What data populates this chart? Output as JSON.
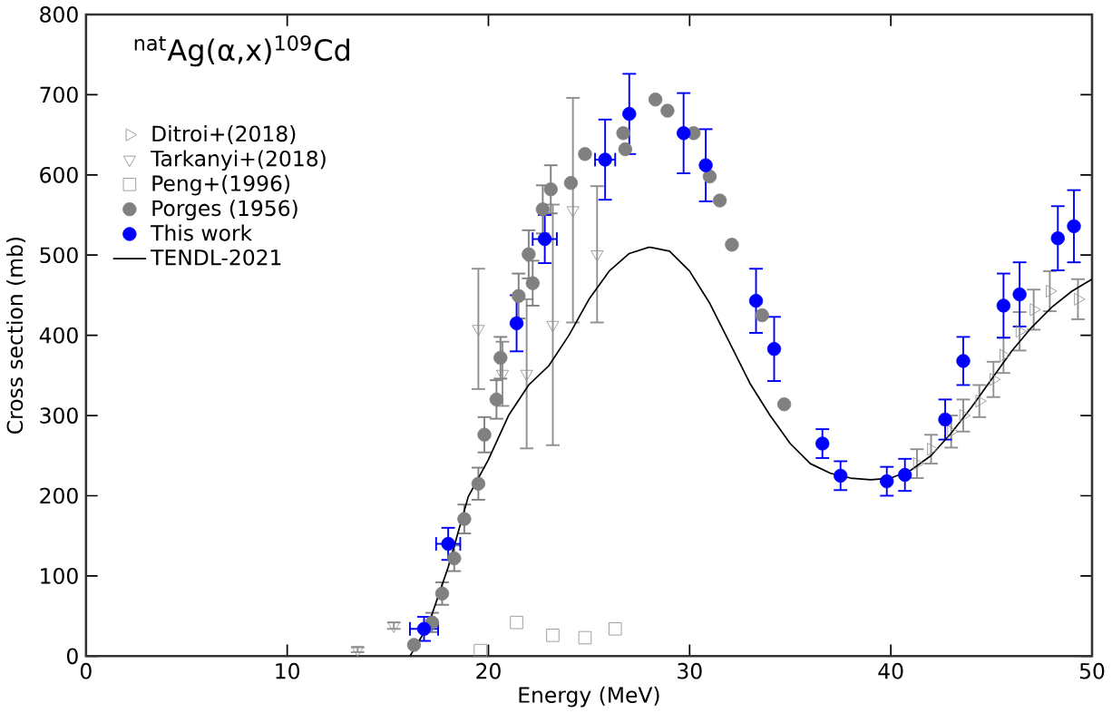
{
  "chart_data": {
    "type": "scatter",
    "title": "$^{nat}$Ag(α,x)$^{109}$Cd",
    "xlabel": "Energy (MeV)",
    "ylabel": "Cross section (mb)",
    "xlim": [
      0,
      50
    ],
    "ylim": [
      0,
      800
    ],
    "xticks": [
      0,
      10,
      20,
      30,
      40,
      50
    ],
    "yticks": [
      0,
      100,
      200,
      300,
      400,
      500,
      600,
      700,
      800
    ],
    "grid": false,
    "legend": "top left",
    "series": [
      {
        "name": "Ditroi+(2018)",
        "marker": "triangle-right",
        "color": "#909090",
        "x": [
          41.3,
          42.0,
          43.0,
          43.6,
          44.4,
          45.1,
          45.6,
          46.4,
          47.1,
          47.9,
          49.3
        ],
        "values": [
          240,
          258,
          280,
          300,
          318,
          345,
          375,
          405,
          432,
          455,
          445
        ],
        "errors": [
          18,
          18,
          20,
          20,
          20,
          22,
          22,
          24,
          25,
          25,
          25
        ]
      },
      {
        "name": "Tarkanyi+(2018)",
        "marker": "triangle-down",
        "color": "#909090",
        "x": [
          13.5,
          15.3,
          19.5,
          20.7,
          21.9,
          23.2,
          24.2,
          25.4
        ],
        "values": [
          8,
          38,
          408,
          352,
          352,
          413,
          556,
          501
        ],
        "errors": [
          3,
          4,
          75,
          40,
          93,
          150,
          140,
          85
        ]
      },
      {
        "name": "Peng+(1996)",
        "marker": "square",
        "color": "#909090",
        "x": [
          19.6,
          21.4,
          23.2,
          24.8,
          26.3
        ],
        "values": [
          7,
          42,
          26,
          23,
          34
        ]
      },
      {
        "name": "Porges (1956)",
        "marker": "circle",
        "color": "#808080",
        "x": [
          16.3,
          17.2,
          17.7,
          18.3,
          18.8,
          19.5,
          19.8,
          20.4,
          20.6,
          21.5,
          22.2,
          22.0,
          22.7,
          23.1,
          24.1,
          24.8,
          26.7,
          26.8,
          28.3,
          28.9,
          30.2,
          31.0,
          31.5,
          32.1,
          33.6,
          34.7
        ],
        "values": [
          14,
          42,
          78,
          122,
          171,
          215,
          276,
          320,
          372,
          449,
          465,
          501,
          557,
          582,
          590,
          626,
          652,
          632,
          694,
          680,
          652,
          598,
          568,
          513,
          425,
          314
        ],
        "errors": [
          null,
          12,
          14,
          16,
          18,
          20,
          22,
          24,
          26,
          28,
          28,
          30,
          30,
          30,
          null,
          null,
          null,
          null,
          null,
          null,
          null,
          null,
          null,
          null,
          null,
          null
        ]
      },
      {
        "name": "This work",
        "marker": "circle",
        "color": "#0000ff",
        "x": [
          16.8,
          18.0,
          21.4,
          22.8,
          25.8,
          27.0,
          29.7,
          30.8,
          33.3,
          34.2,
          36.6,
          37.5,
          39.8,
          40.7,
          42.7,
          43.6,
          45.6,
          46.4,
          48.3,
          49.1
        ],
        "values": [
          34,
          140,
          415,
          520,
          619,
          676,
          652,
          612,
          443,
          383,
          265,
          225,
          218,
          226,
          295,
          368,
          437,
          451,
          521,
          536
        ],
        "errors": [
          15,
          20,
          35,
          30,
          50,
          50,
          50,
          45,
          40,
          40,
          18,
          18,
          18,
          20,
          25,
          30,
          40,
          40,
          40,
          45
        ],
        "xerrors": [
          0.7,
          0.6,
          null,
          0.6,
          0.5,
          null,
          null,
          null,
          null,
          null,
          null,
          null,
          null,
          null,
          null,
          null,
          null,
          null,
          null,
          null
        ]
      },
      {
        "name": "TENDL-2021",
        "type": "line",
        "line_style": "solid",
        "marker": "none",
        "color": "#000000",
        "x": [
          16.1,
          17,
          18,
          19,
          20,
          21,
          22,
          23,
          24,
          25,
          26,
          27,
          28,
          29,
          30,
          31,
          32,
          33,
          34,
          35,
          36,
          37,
          38,
          39,
          40,
          41,
          42,
          43,
          44,
          45,
          46,
          47,
          48,
          49,
          50
        ],
        "values": [
          0,
          38,
          111,
          199,
          245,
          300,
          338,
          362,
          400,
          445,
          480,
          502,
          510,
          505,
          480,
          440,
          390,
          340,
          300,
          265,
          240,
          228,
          222,
          220,
          222,
          232,
          250,
          278,
          310,
          345,
          380,
          410,
          435,
          455,
          470
        ]
      }
    ]
  }
}
